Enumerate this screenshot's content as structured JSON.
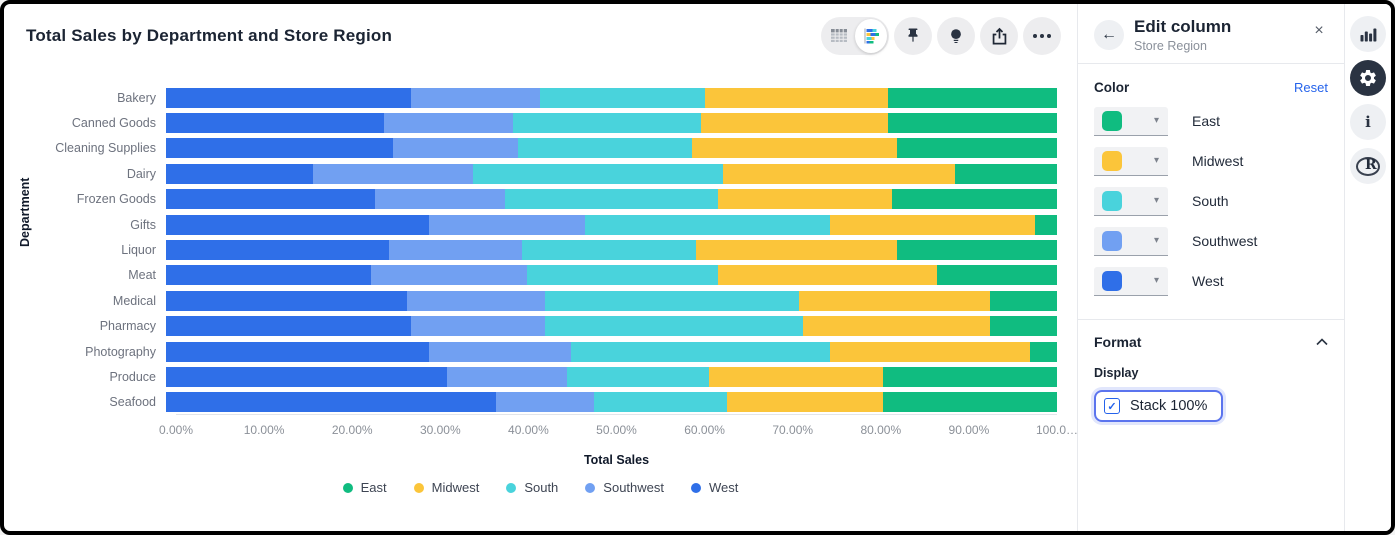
{
  "chart_data": {
    "type": "bar",
    "orientation": "horizontal",
    "stacked": true,
    "stack_100_percent": true,
    "title": "Total Sales by Department and Store Region",
    "xlabel": "Total Sales",
    "ylabel": "Department",
    "xlim": [
      0,
      100
    ],
    "grid": false,
    "x_tick_labels": [
      "0.00%",
      "10.00%",
      "20.00%",
      "30.00%",
      "40.00%",
      "50.00%",
      "60.00%",
      "70.00%",
      "80.00%",
      "90.00%",
      "100.0…"
    ],
    "categories": [
      "Bakery",
      "Canned Goods",
      "Cleaning Supplies",
      "Dairy",
      "Frozen Goods",
      "Gifts",
      "Liquor",
      "Meat",
      "Medical",
      "Pharmacy",
      "Photography",
      "Produce",
      "Seafood"
    ],
    "series": [
      {
        "name": "West",
        "color": "#2f6fe8",
        "values": [
          27.5,
          24.5,
          25.5,
          16.5,
          23.5,
          29.5,
          25.0,
          23.0,
          27.0,
          27.5,
          29.5,
          31.5,
          37.0
        ]
      },
      {
        "name": "Southwest",
        "color": "#71a0f2",
        "values": [
          14.5,
          14.5,
          14.0,
          18.0,
          14.5,
          17.5,
          15.0,
          17.5,
          15.5,
          15.0,
          16.0,
          13.5,
          11.0
        ]
      },
      {
        "name": "South",
        "color": "#49d3dc",
        "values": [
          18.5,
          21.0,
          19.5,
          28.0,
          24.0,
          27.5,
          19.5,
          21.5,
          28.5,
          29.0,
          29.0,
          16.0,
          15.0
        ]
      },
      {
        "name": "Midwest",
        "color": "#fbc53a",
        "values": [
          20.5,
          21.0,
          23.0,
          26.0,
          19.5,
          23.0,
          22.5,
          24.5,
          21.5,
          21.0,
          22.5,
          19.5,
          17.5
        ]
      },
      {
        "name": "East",
        "color": "#10bc80",
        "values": [
          19.0,
          19.0,
          18.0,
          11.5,
          18.5,
          2.5,
          18.0,
          13.5,
          7.5,
          7.5,
          3.0,
          19.5,
          19.5
        ]
      }
    ],
    "legend": {
      "position": "bottom",
      "items": [
        "East",
        "Midwest",
        "South",
        "Southwest",
        "West"
      ]
    }
  },
  "header": {
    "title": "Total Sales by Department and Store Region",
    "toolbar": {
      "view_toggle": {
        "table_icon": "table-grid",
        "chart_icon": "stacked-bar-chart",
        "selected": "chart"
      },
      "pin_icon": "pushpin",
      "insight_icon": "lightbulb",
      "share_icon": "share-export",
      "more_icon": "ellipsis"
    }
  },
  "edit_panel": {
    "back_icon": "←",
    "title": "Edit column",
    "subtitle": "Store Region",
    "close_icon": "×",
    "color_section": {
      "label": "Color",
      "reset_label": "Reset",
      "rows": [
        {
          "name": "East",
          "color": "#10bc80"
        },
        {
          "name": "Midwest",
          "color": "#fbc53a"
        },
        {
          "name": "South",
          "color": "#49d3dc"
        },
        {
          "name": "Southwest",
          "color": "#71a0f2"
        },
        {
          "name": "West",
          "color": "#2f6fe8"
        }
      ]
    },
    "format_section": {
      "label": "Format",
      "collapse_icon": "chevron-up",
      "display_label": "Display",
      "checkbox": {
        "label": "Stack 100%",
        "checked": true
      }
    }
  },
  "right_rail": {
    "icons": [
      {
        "name": "bar-chart",
        "active": false
      },
      {
        "name": "settings-gear",
        "active": true
      },
      {
        "name": "info",
        "active": false
      },
      {
        "name": "r-language-logo",
        "active": false
      }
    ]
  },
  "colors": {
    "accent_blue": "#2563eb",
    "icon_dark": "#2a3342",
    "divider": "#e7e9ed"
  }
}
